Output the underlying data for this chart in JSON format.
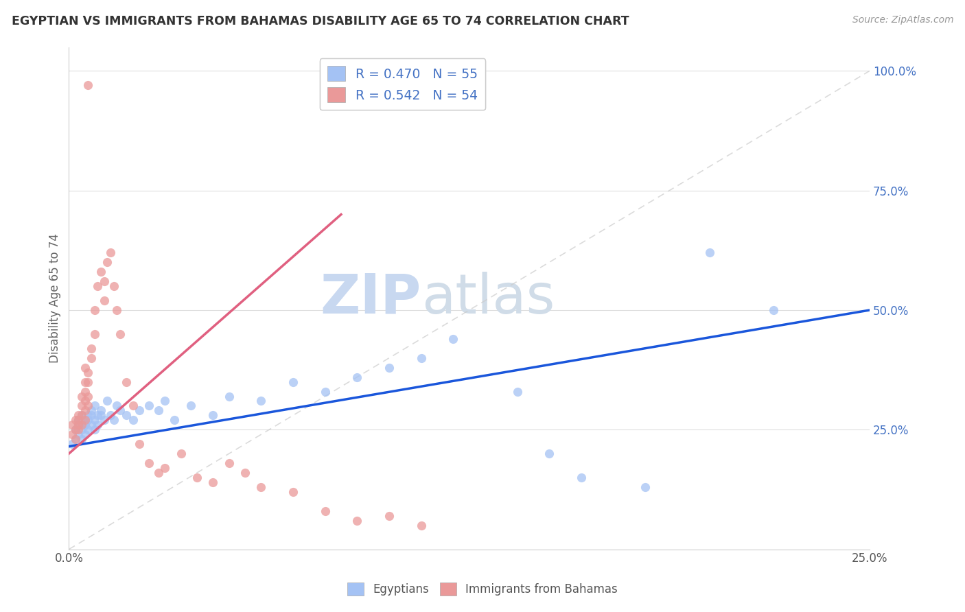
{
  "title": "EGYPTIAN VS IMMIGRANTS FROM BAHAMAS DISABILITY AGE 65 TO 74 CORRELATION CHART",
  "source": "Source: ZipAtlas.com",
  "ylabel": "Disability Age 65 to 74",
  "xlim": [
    0.0,
    0.25
  ],
  "ylim": [
    0.0,
    1.05
  ],
  "legend_r_blue": "R = 0.470",
  "legend_n_blue": "N = 55",
  "legend_r_pink": "R = 0.542",
  "legend_n_pink": "N = 54",
  "blue_color": "#a4c2f4",
  "pink_color": "#ea9999",
  "blue_line_color": "#1a56db",
  "pink_line_color": "#e06080",
  "blue_label": "Egyptians",
  "pink_label": "Immigrants from Bahamas",
  "watermark_zip": "ZIP",
  "watermark_atlas": "atlas",
  "background_color": "#ffffff",
  "grid_color": "#dddddd",
  "blue_x": [
    0.001,
    0.002,
    0.002,
    0.003,
    0.003,
    0.003,
    0.004,
    0.004,
    0.004,
    0.005,
    0.005,
    0.005,
    0.005,
    0.006,
    0.006,
    0.006,
    0.007,
    0.007,
    0.007,
    0.008,
    0.008,
    0.008,
    0.009,
    0.009,
    0.01,
    0.01,
    0.011,
    0.012,
    0.013,
    0.014,
    0.015,
    0.016,
    0.018,
    0.02,
    0.022,
    0.025,
    0.028,
    0.03,
    0.033,
    0.038,
    0.045,
    0.05,
    0.06,
    0.07,
    0.08,
    0.09,
    0.1,
    0.11,
    0.12,
    0.14,
    0.15,
    0.16,
    0.18,
    0.2,
    0.22
  ],
  "blue_y": [
    0.22,
    0.25,
    0.23,
    0.27,
    0.24,
    0.26,
    0.25,
    0.28,
    0.23,
    0.26,
    0.27,
    0.24,
    0.26,
    0.28,
    0.25,
    0.27,
    0.29,
    0.26,
    0.28,
    0.27,
    0.3,
    0.25,
    0.28,
    0.26,
    0.29,
    0.28,
    0.27,
    0.31,
    0.28,
    0.27,
    0.3,
    0.29,
    0.28,
    0.27,
    0.29,
    0.3,
    0.29,
    0.31,
    0.27,
    0.3,
    0.28,
    0.32,
    0.31,
    0.35,
    0.33,
    0.36,
    0.38,
    0.4,
    0.44,
    0.33,
    0.2,
    0.15,
    0.13,
    0.62,
    0.5
  ],
  "pink_x": [
    0.001,
    0.001,
    0.002,
    0.002,
    0.002,
    0.003,
    0.003,
    0.003,
    0.003,
    0.004,
    0.004,
    0.004,
    0.004,
    0.005,
    0.005,
    0.005,
    0.005,
    0.005,
    0.005,
    0.006,
    0.006,
    0.006,
    0.006,
    0.007,
    0.007,
    0.008,
    0.008,
    0.009,
    0.01,
    0.011,
    0.011,
    0.012,
    0.013,
    0.014,
    0.015,
    0.016,
    0.018,
    0.02,
    0.022,
    0.025,
    0.028,
    0.03,
    0.035,
    0.04,
    0.045,
    0.05,
    0.055,
    0.06,
    0.07,
    0.08,
    0.09,
    0.1,
    0.11,
    0.006
  ],
  "pink_y": [
    0.24,
    0.26,
    0.25,
    0.27,
    0.23,
    0.26,
    0.28,
    0.25,
    0.27,
    0.26,
    0.28,
    0.3,
    0.32,
    0.27,
    0.29,
    0.31,
    0.33,
    0.35,
    0.38,
    0.3,
    0.32,
    0.35,
    0.37,
    0.4,
    0.42,
    0.45,
    0.5,
    0.55,
    0.58,
    0.52,
    0.56,
    0.6,
    0.62,
    0.55,
    0.5,
    0.45,
    0.35,
    0.3,
    0.22,
    0.18,
    0.16,
    0.17,
    0.2,
    0.15,
    0.14,
    0.18,
    0.16,
    0.13,
    0.12,
    0.08,
    0.06,
    0.07,
    0.05,
    0.97
  ],
  "blue_line_x": [
    0.0,
    0.25
  ],
  "blue_line_y": [
    0.215,
    0.5
  ],
  "pink_line_x": [
    0.0,
    0.085
  ],
  "pink_line_y": [
    0.2,
    0.7
  ]
}
